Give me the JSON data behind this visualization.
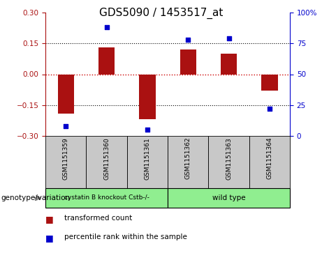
{
  "title": "GDS5090 / 1453517_at",
  "samples": [
    "GSM1151359",
    "GSM1151360",
    "GSM1151361",
    "GSM1151362",
    "GSM1151363",
    "GSM1151364"
  ],
  "transformed_count": [
    -0.19,
    0.13,
    -0.22,
    0.12,
    0.1,
    -0.08
  ],
  "percentile_rank": [
    8,
    88,
    5,
    78,
    79,
    22
  ],
  "ylim_left": [
    -0.3,
    0.3
  ],
  "ylim_right": [
    0,
    100
  ],
  "yticks_left": [
    -0.3,
    -0.15,
    0,
    0.15,
    0.3
  ],
  "yticks_right": [
    0,
    25,
    50,
    75,
    100
  ],
  "bar_color": "#aa1111",
  "scatter_color": "#0000cc",
  "group1_label": "cystatin B knockout Cstb-/-",
  "group2_label": "wild type",
  "group1_color": "#90ee90",
  "group2_color": "#90ee90",
  "xlabel_left": "genotype/variation",
  "legend_bar": "transformed count",
  "legend_scatter": "percentile rank within the sample",
  "bg_color": "#c8c8c8",
  "plot_bg": "#ffffff",
  "hline_color": "#cc0000",
  "bar_width": 0.4,
  "title_fontsize": 11,
  "tick_fontsize": 7.5,
  "sample_fontsize": 6.5,
  "group_fontsize": 7.5,
  "legend_fontsize": 7.5
}
